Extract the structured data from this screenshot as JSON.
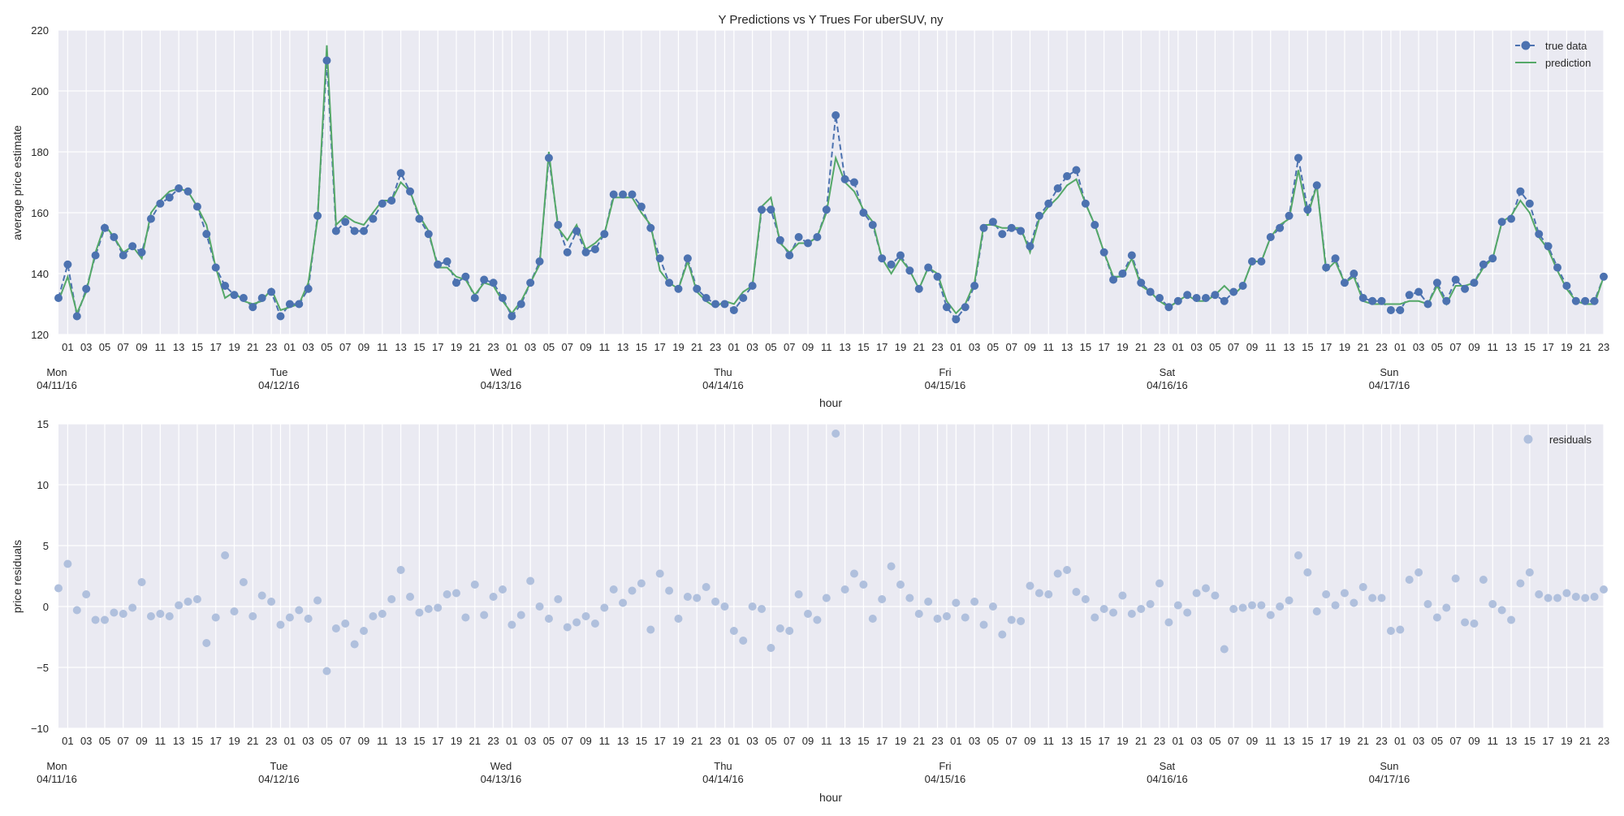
{
  "chart_data": [
    {
      "type": "line",
      "title": "Y Predictions vs Y Trues For uberSUV, ny",
      "xlabel": "hour",
      "ylabel": "average price estimate",
      "ylim": [
        120,
        220
      ],
      "yticks": [
        120,
        140,
        160,
        180,
        200,
        220
      ],
      "grid": true,
      "legend": "top-right",
      "x_start": "04/11/16 00:00",
      "x_step": "1 hour",
      "hour_tick_labels": [
        "01",
        "03",
        "05",
        "07",
        "09",
        "11",
        "13",
        "15",
        "17",
        "19",
        "21",
        "23"
      ],
      "day_labels": [
        {
          "day": "Mon",
          "date": "04/11/16"
        },
        {
          "day": "Tue",
          "date": "04/12/16"
        },
        {
          "day": "Wed",
          "date": "04/13/16"
        },
        {
          "day": "Thu",
          "date": "04/14/16"
        },
        {
          "day": "Fri",
          "date": "04/15/16"
        },
        {
          "day": "Sat",
          "date": "04/16/16"
        },
        {
          "day": "Sun",
          "date": "04/17/16"
        }
      ],
      "series": [
        {
          "name": "true data",
          "color": "#4c72b0",
          "style": "dashed line with circle markers",
          "values": [
            132,
            143,
            126,
            135,
            146,
            155,
            152,
            146,
            149,
            147,
            158,
            163,
            165,
            168,
            167,
            162,
            153,
            142,
            136,
            133,
            132,
            129,
            132,
            134,
            126,
            130,
            130,
            135,
            159,
            210,
            154,
            157,
            154,
            154,
            158,
            163,
            164,
            173,
            167,
            158,
            153,
            143,
            144,
            137,
            139,
            132,
            138,
            137,
            132,
            126,
            130,
            137,
            144,
            178,
            156,
            147,
            154,
            147,
            148,
            153,
            166,
            166,
            166,
            162,
            155,
            145,
            137,
            135,
            145,
            135,
            132,
            130,
            130,
            128,
            132,
            136,
            161,
            161,
            151,
            146,
            152,
            150,
            152,
            161,
            192,
            171,
            170,
            160,
            156,
            145,
            143,
            146,
            141,
            135,
            142,
            139,
            129,
            125,
            129,
            136,
            155,
            157,
            153,
            155,
            154,
            149,
            159,
            163,
            168,
            172,
            174,
            163,
            156,
            147,
            138,
            140,
            146,
            137,
            134,
            132,
            129,
            131,
            133,
            132,
            132,
            133,
            131,
            134,
            136,
            144,
            144,
            152,
            155,
            159,
            178,
            161,
            169,
            142,
            145,
            137,
            140,
            132,
            131,
            131,
            128,
            128,
            133,
            134,
            130,
            137,
            131,
            138,
            135,
            137,
            143,
            145,
            157,
            158,
            167,
            163,
            153,
            149,
            142,
            136,
            131,
            131,
            131,
            139
          ]
        },
        {
          "name": "prediction",
          "color": "#55a868",
          "style": "solid line",
          "values": [
            131,
            139,
            127,
            134,
            147,
            156,
            152,
            147,
            149,
            145,
            160,
            164,
            167,
            168,
            167,
            162,
            156,
            142,
            132,
            134,
            131,
            130,
            131,
            135,
            128,
            129,
            130,
            137,
            158,
            215,
            156,
            159,
            157,
            156,
            160,
            164,
            164,
            170,
            167,
            159,
            154,
            142,
            142,
            139,
            138,
            133,
            137,
            136,
            131,
            127,
            131,
            137,
            143,
            180,
            155,
            151,
            156,
            148,
            150,
            153,
            165,
            165,
            165,
            160,
            156,
            141,
            137,
            135,
            144,
            134,
            131,
            129,
            131,
            130,
            134,
            136,
            162,
            165,
            150,
            147,
            150,
            150,
            152,
            160,
            178,
            170,
            167,
            161,
            157,
            145,
            140,
            145,
            141,
            135,
            142,
            140,
            131,
            127,
            130,
            137,
            156,
            156,
            155,
            155,
            155,
            147,
            158,
            162,
            165,
            169,
            171,
            163,
            156,
            147,
            139,
            139,
            145,
            136,
            134,
            131,
            129,
            131,
            133,
            131,
            131,
            133,
            136,
            133,
            136,
            144,
            144,
            152,
            156,
            158,
            174,
            159,
            169,
            141,
            144,
            137,
            139,
            131,
            130,
            130,
            130,
            130,
            131,
            131,
            130,
            136,
            130,
            136,
            136,
            137,
            142,
            145,
            157,
            159,
            164,
            160,
            152,
            148,
            141,
            135,
            131,
            130,
            130,
            139
          ]
        }
      ]
    },
    {
      "type": "scatter",
      "xlabel": "hour",
      "ylabel": "price residuals",
      "ylim": [
        -10,
        15
      ],
      "yticks": [
        -10,
        -5,
        0,
        5,
        10,
        15
      ],
      "grid": true,
      "legend": "top-right",
      "series": [
        {
          "name": "residuals",
          "color": "#b0c0dd",
          "values": [
            1.5,
            3.5,
            -0.3,
            1.0,
            -1.1,
            -1.1,
            -0.5,
            -0.6,
            -0.1,
            2.0,
            -0.8,
            -0.6,
            -0.8,
            0.1,
            0.4,
            0.6,
            -3.0,
            -0.9,
            4.2,
            -0.4,
            2.0,
            -0.8,
            0.9,
            0.4,
            -1.5,
            -0.9,
            -0.3,
            -1.0,
            0.5,
            -5.3,
            -1.8,
            -1.4,
            -3.1,
            -2.0,
            -0.8,
            -0.6,
            0.6,
            3.0,
            0.8,
            -0.5,
            -0.2,
            -0.1,
            1.0,
            1.1,
            -0.9,
            1.8,
            -0.7,
            0.8,
            1.4,
            -1.5,
            -0.7,
            2.1,
            0.0,
            -1.0,
            0.6,
            -1.7,
            -1.3,
            -0.8,
            -1.4,
            -0.1,
            1.4,
            0.3,
            1.3,
            1.9,
            -1.9,
            2.7,
            1.3,
            -1.0,
            0.8,
            0.7,
            1.6,
            0.4,
            0.0,
            -2.0,
            -2.8,
            0.0,
            -0.2,
            -3.4,
            -1.8,
            -2.0,
            1.0,
            -0.6,
            -1.1,
            0.7,
            14.2,
            1.4,
            2.7,
            1.8,
            -1.0,
            0.6,
            3.3,
            1.8,
            0.7,
            -0.6,
            0.4,
            -1.0,
            -0.8,
            0.3,
            -0.9,
            0.4,
            -1.5,
            0.0,
            -2.3,
            -1.1,
            -1.2,
            1.7,
            1.1,
            1.0,
            2.7,
            3.0,
            1.2,
            0.6,
            -0.9,
            -0.2,
            -0.5,
            0.9,
            -0.6,
            -0.2,
            0.2,
            1.9,
            -1.3,
            0.1,
            -0.5,
            1.1,
            1.5,
            0.9,
            -3.5,
            -0.2,
            -0.1,
            0.1,
            0.1,
            -0.7,
            0.0,
            0.5,
            4.2,
            2.8,
            -0.4,
            1.0,
            0.1,
            1.1,
            0.3,
            1.6,
            0.7,
            0.7,
            -2.0,
            -1.9,
            2.2,
            2.8,
            0.2,
            -0.9,
            -0.1,
            2.3,
            -1.3,
            -1.4,
            2.2,
            0.2,
            -0.3,
            -1.1,
            1.9,
            2.8,
            1.0,
            0.7,
            0.7,
            1.1,
            0.8,
            0.7,
            0.8,
            1.4
          ]
        }
      ]
    }
  ]
}
